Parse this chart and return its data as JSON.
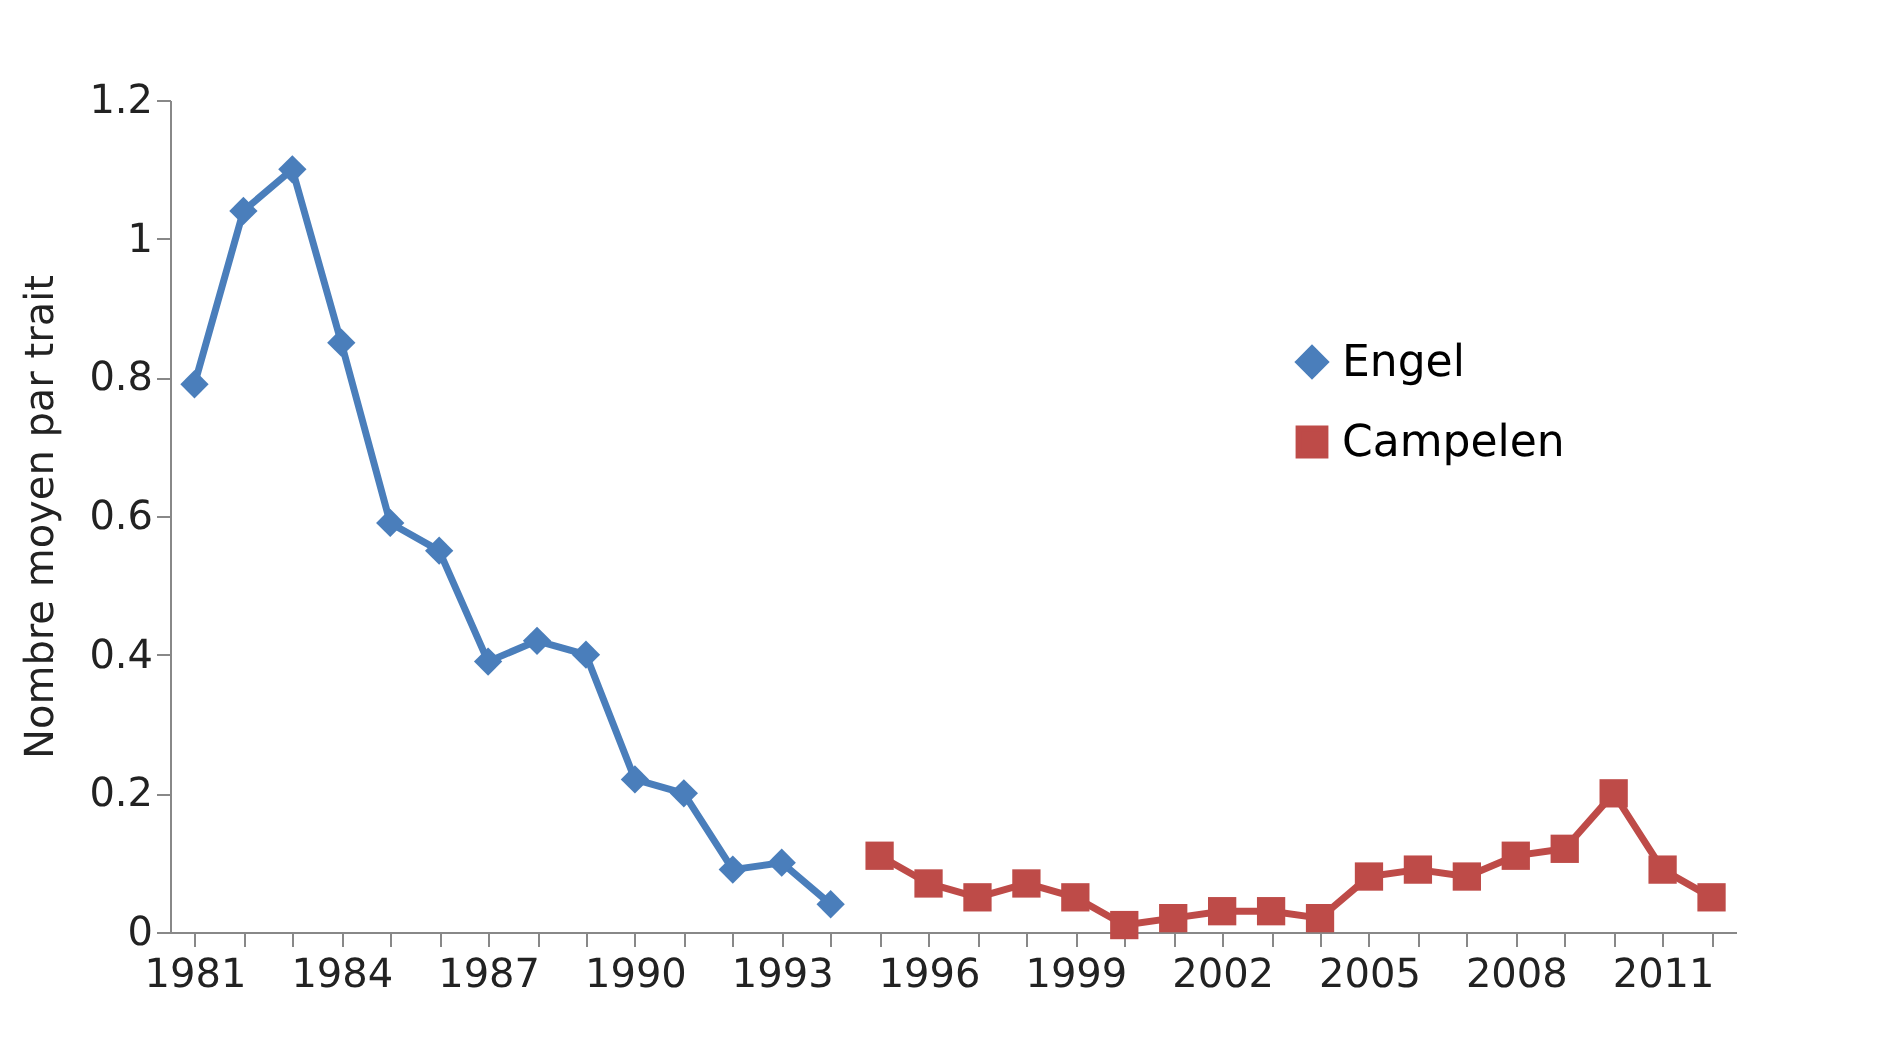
{
  "chart_data": {
    "type": "line",
    "ylabel": "Nombre moyen par trait",
    "categories": [
      "1981",
      null,
      null,
      "1984",
      null,
      null,
      "1987",
      null,
      null,
      "1990",
      null,
      null,
      "1993",
      null,
      null,
      "1996",
      null,
      null,
      "1999",
      null,
      null,
      "2002",
      null,
      null,
      "2005",
      null,
      null,
      "2008",
      null,
      null,
      "2011",
      null
    ],
    "series": [
      {
        "name": "Engel",
        "color": "#4a7ebb",
        "marker": "diamond",
        "values": [
          0.79,
          1.04,
          1.1,
          0.85,
          0.59,
          0.55,
          0.39,
          0.42,
          0.4,
          0.22,
          0.2,
          0.09,
          0.1,
          0.04,
          null,
          null,
          null,
          null,
          null,
          null,
          null,
          null,
          null,
          null,
          null,
          null,
          null,
          null,
          null,
          null,
          null,
          null
        ]
      },
      {
        "name": "Campelen",
        "color": "#be4b48",
        "marker": "square",
        "values": [
          null,
          null,
          null,
          null,
          null,
          null,
          null,
          null,
          null,
          null,
          null,
          null,
          null,
          null,
          0.11,
          0.07,
          0.05,
          0.07,
          0.05,
          0.01,
          0.02,
          0.03,
          0.03,
          0.02,
          0.08,
          0.09,
          0.08,
          0.11,
          0.12,
          0.2,
          0.09,
          0.05
        ]
      }
    ],
    "ylim": [
      0,
      1.2
    ],
    "yticks": [
      0,
      0.2,
      0.4,
      0.6,
      0.8,
      1,
      1.2
    ],
    "grid": false,
    "legend": "right"
  }
}
